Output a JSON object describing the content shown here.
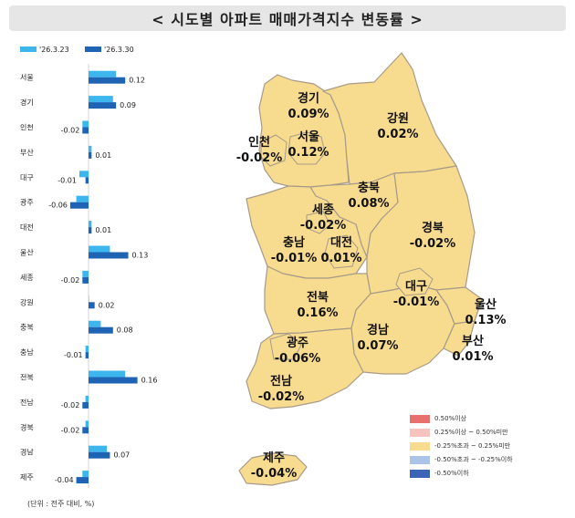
{
  "title": "< 시도별 아파트 매매가격지수 변동률 >",
  "note": "(단위 : 전주 대비, %)",
  "colors": {
    "prev_series": "#3db6ee",
    "curr_series": "#1f63b5",
    "map_fill": "#f7dc8f",
    "map_stroke": "#a89a88"
  },
  "chart_data": {
    "type": "bar",
    "orientation": "horizontal",
    "categories": [
      "서울",
      "경기",
      "인천",
      "부산",
      "대구",
      "광주",
      "대전",
      "울산",
      "세종",
      "강원",
      "충북",
      "충남",
      "전북",
      "전남",
      "경북",
      "경남",
      "제주"
    ],
    "series": [
      {
        "name": "'26.3.23",
        "values": [
          0.09,
          0.08,
          -0.02,
          0.01,
          -0.03,
          -0.04,
          0.01,
          0.07,
          -0.02,
          0.0,
          0.04,
          -0.01,
          0.12,
          -0.01,
          -0.01,
          0.06,
          -0.02
        ]
      },
      {
        "name": "'26.3.30",
        "values": [
          0.12,
          0.09,
          -0.02,
          0.01,
          -0.01,
          -0.06,
          0.01,
          0.13,
          -0.02,
          0.02,
          0.08,
          -0.01,
          0.16,
          -0.02,
          -0.02,
          0.07,
          -0.04
        ]
      }
    ],
    "value_labels": [
      "0.12",
      "0.09",
      "-0.02",
      "0.01",
      "-0.01",
      "-0.06",
      "0.01",
      "0.13",
      "-0.02",
      "0.02",
      "0.08",
      "-0.01",
      "0.16",
      "-0.02",
      "-0.02",
      "0.07",
      "-0.04"
    ]
  },
  "map": {
    "regions": [
      {
        "name": "경기",
        "value": "0.09%"
      },
      {
        "name": "강원",
        "value": "0.02%"
      },
      {
        "name": "인천",
        "value": "-0.02%"
      },
      {
        "name": "서울",
        "value": "0.12%"
      },
      {
        "name": "충북",
        "value": "0.08%"
      },
      {
        "name": "세종",
        "value": "-0.02%"
      },
      {
        "name": "경북",
        "value": "-0.02%"
      },
      {
        "name": "충남",
        "value": "-0.01%"
      },
      {
        "name": "대전",
        "value": "0.01%"
      },
      {
        "name": "대구",
        "value": "-0.01%"
      },
      {
        "name": "울산",
        "value": "0.13%"
      },
      {
        "name": "전북",
        "value": "0.16%"
      },
      {
        "name": "경남",
        "value": "0.07%"
      },
      {
        "name": "부산",
        "value": "0.01%"
      },
      {
        "name": "광주",
        "value": "-0.06%"
      },
      {
        "name": "전남",
        "value": "-0.02%"
      },
      {
        "name": "제주",
        "value": "-0.04%"
      }
    ],
    "legend": [
      {
        "label": "0.50%이상",
        "color": "#e8716f"
      },
      {
        "label": "0.25%이상 ~ 0.50%미만",
        "color": "#f6c3bf"
      },
      {
        "label": "-0.25%초과 ~ 0.25%미만",
        "color": "#f7dc8f"
      },
      {
        "label": "-0.50%초과 ~ -0.25%이하",
        "color": "#aac3e6"
      },
      {
        "label": "-0.50%이하",
        "color": "#3b64b6"
      }
    ]
  }
}
